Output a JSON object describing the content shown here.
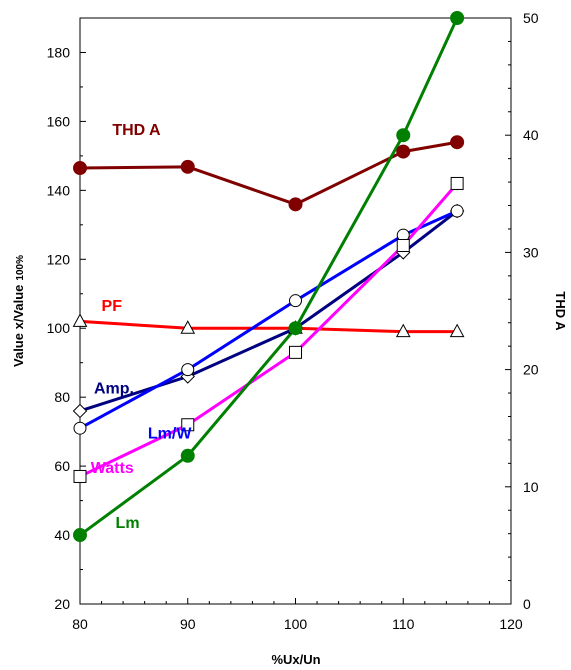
{
  "chart_data": {
    "type": "line",
    "xlabel": "%Ux/Un",
    "ylabel": "Value x/Value",
    "ylabel_sub": "100%",
    "y2label": "THD A",
    "xlim": [
      80,
      120
    ],
    "ylim": [
      20,
      190
    ],
    "y2lim": [
      0,
      50
    ],
    "x_ticks": [
      80,
      90,
      100,
      110,
      120
    ],
    "y_ticks": [
      20,
      40,
      60,
      80,
      100,
      120,
      140,
      160,
      180
    ],
    "y2_ticks": [
      0,
      10,
      20,
      30,
      40,
      50
    ],
    "grid": false,
    "series": [
      {
        "name": "THD A",
        "axis": "right",
        "color": "#800000",
        "marker": "filled-circle",
        "x": [
          80,
          90,
          100,
          110,
          115
        ],
        "values": [
          37.2,
          37.3,
          34.1,
          38.6,
          39.4
        ],
        "label_value": {
          "x": 83,
          "y": 40
        }
      },
      {
        "name": "PF",
        "axis": "left",
        "color": "#ff0000",
        "marker": "open-triangle",
        "x": [
          80,
          90,
          100,
          110,
          115
        ],
        "values": [
          102,
          100,
          100,
          99,
          99
        ],
        "label_value": {
          "x": 82,
          "y": 105
        }
      },
      {
        "name": "Amp.",
        "axis": "left",
        "color": "#000080",
        "marker": "open-diamond",
        "x": [
          80,
          90,
          100,
          110,
          115
        ],
        "values": [
          76,
          86,
          100,
          122,
          134
        ],
        "label_value": {
          "x": 81.3,
          "y": 81
        }
      },
      {
        "name": "Lm/W",
        "axis": "left",
        "color": "#0000ff",
        "marker": "open-circle",
        "x": [
          80,
          90,
          100,
          110,
          115
        ],
        "values": [
          71,
          88,
          108,
          127,
          134
        ],
        "label_value": {
          "x": 86.3,
          "y": 68
        }
      },
      {
        "name": "Watts",
        "axis": "left",
        "color": "#ff00ff",
        "marker": "open-square",
        "x": [
          80,
          90,
          100,
          110,
          115
        ],
        "values": [
          57,
          72,
          93,
          124,
          142
        ],
        "label_value": {
          "x": 81,
          "y": 58
        }
      },
      {
        "name": "Lm",
        "axis": "left",
        "color": "#008000",
        "marker": "filled-circle",
        "x": [
          80,
          90,
          100,
          110,
          115
        ],
        "values": [
          40,
          63,
          100,
          156,
          190
        ],
        "label_value": {
          "x": 83.3,
          "y": 42
        }
      }
    ]
  }
}
